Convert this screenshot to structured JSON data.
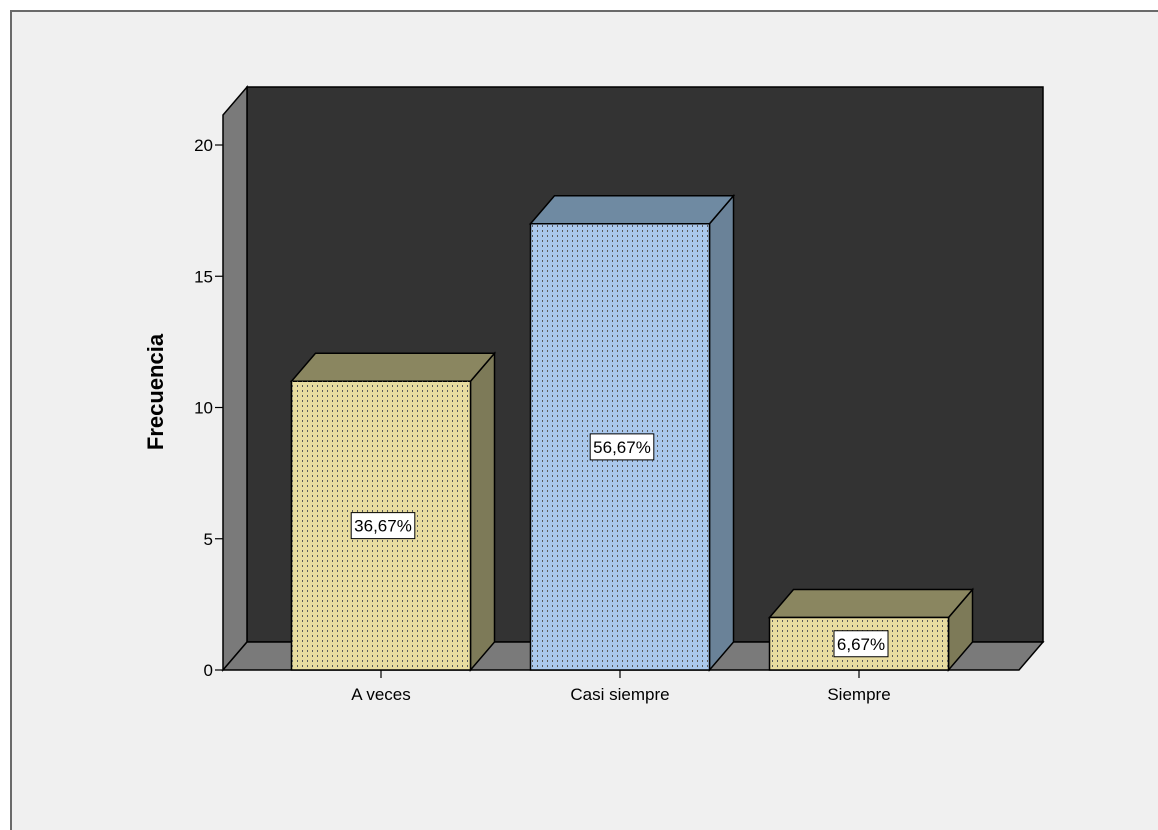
{
  "chart_data": {
    "type": "bar",
    "categories": [
      "A veces",
      "Casi siempre",
      "Siempre"
    ],
    "values": [
      11,
      17,
      2
    ],
    "data_labels": [
      "36,67%",
      "56,67%",
      "6,67%"
    ],
    "xlabel": "",
    "ylabel": "Frecuencia",
    "ylim": [
      0,
      20
    ],
    "yticks": [
      0,
      5,
      10,
      15,
      20
    ],
    "grid": false,
    "style_3d": true,
    "colors": {
      "frame_background": "#f0f0f0",
      "wall": "#333333",
      "side_wall": "#7a7a7a",
      "floor": "#7a7a7a",
      "bars": [
        "#e8dca0",
        "#aac8ec",
        "#e8dca0"
      ],
      "bar_sides": [
        "#7d7a58",
        "#6a8298",
        "#7d7a58"
      ],
      "bar_tops": [
        "#8a8660",
        "#6f8aa2",
        "#8a8660"
      ]
    }
  }
}
